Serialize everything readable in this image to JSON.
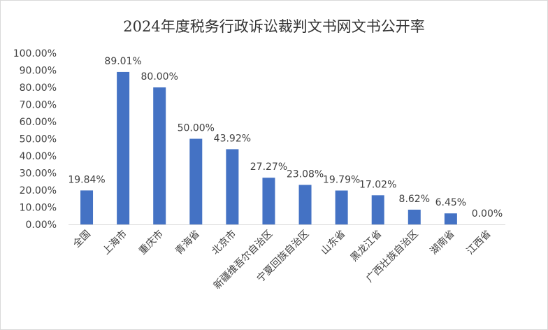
{
  "chart_data": {
    "type": "bar",
    "title": "2024年度税务行政诉讼裁判文书网文书公开率",
    "categories": [
      "全国",
      "上海市",
      "重庆市",
      "青海省",
      "北京市",
      "新疆维吾尔自治区",
      "宁夏回族自治区",
      "山东省",
      "黑龙江省",
      "广西壮族自治区",
      "湖南省",
      "江西省"
    ],
    "values": [
      19.84,
      89.01,
      80.0,
      50.0,
      43.92,
      27.27,
      23.08,
      19.79,
      17.02,
      8.62,
      6.45,
      0.0
    ],
    "data_labels": [
      "19.84%",
      "89.01%",
      "80.00%",
      "50.00%",
      "43.92%",
      "27.27%",
      "23.08%",
      "19.79%",
      "17.02%",
      "8.62%",
      "6.45%",
      "0.00%"
    ],
    "y_ticks": [
      "0.00%",
      "10.00%",
      "20.00%",
      "30.00%",
      "40.00%",
      "50.00%",
      "60.00%",
      "70.00%",
      "80.00%",
      "90.00%",
      "100.00%"
    ],
    "ylim": [
      0,
      100
    ],
    "grid": false,
    "bar_color": "#4472c4"
  }
}
